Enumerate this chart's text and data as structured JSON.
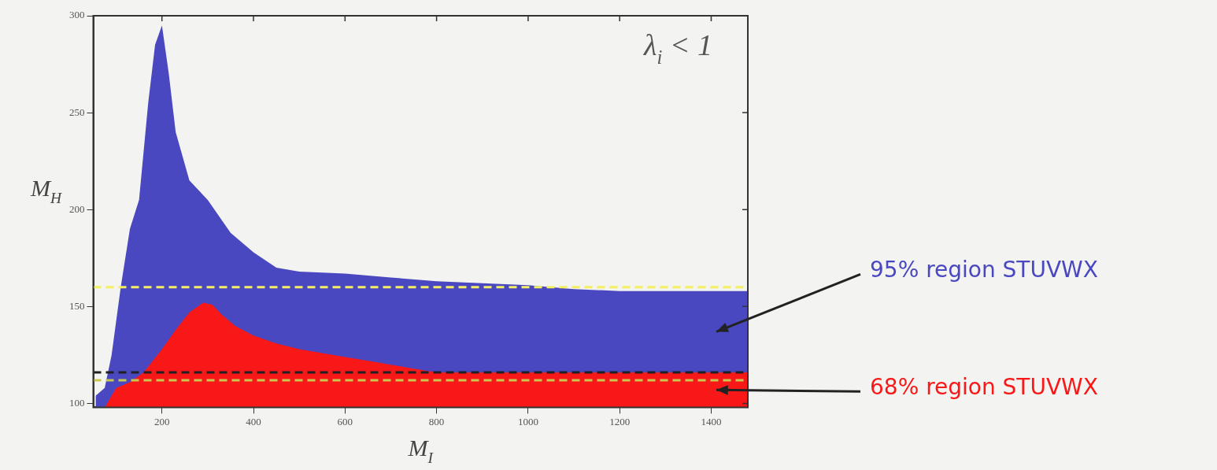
{
  "chart_data": {
    "type": "area",
    "xlabel": "M$_{I}$",
    "ylabel": "M$_{H}$",
    "xlim": [
      50,
      1480
    ],
    "ylim": [
      98,
      300
    ],
    "xticks": [
      200,
      400,
      600,
      800,
      1000,
      1200,
      1400
    ],
    "yticks": [
      100,
      150,
      200,
      250,
      300
    ],
    "grid": false,
    "legend": false,
    "marker": "none",
    "series": [
      {
        "name": "95% region STUVWX",
        "color": "#4a48c0",
        "x": [
          55,
          75,
          90,
          110,
          130,
          150,
          170,
          185,
          200,
          215,
          230,
          260,
          300,
          350,
          400,
          450,
          500,
          600,
          700,
          800,
          900,
          1000,
          1100,
          1200,
          1300,
          1400,
          1480
        ],
        "values": [
          104,
          108,
          125,
          160,
          190,
          205,
          255,
          285,
          295,
          270,
          240,
          215,
          205,
          188,
          178,
          170,
          168,
          167,
          165,
          163,
          162,
          161,
          159,
          158,
          158,
          158,
          158
        ]
      },
      {
        "name": "68% region STUVWX",
        "color": "#f81818",
        "x": [
          75,
          85,
          100,
          130,
          160,
          200,
          230,
          260,
          290,
          310,
          330,
          360,
          400,
          450,
          500,
          550,
          600,
          650,
          700,
          750,
          800,
          900,
          1000,
          1200,
          1400,
          1480
        ],
        "values": [
          98,
          102,
          108,
          111,
          116,
          128,
          138,
          147,
          152,
          151,
          146,
          140,
          135,
          131,
          128,
          126,
          124,
          122,
          120,
          118,
          116,
          116,
          116,
          116,
          116,
          116
        ]
      }
    ],
    "ref_lines": [
      {
        "axis": "y",
        "value": 160,
        "color": "#f2f060",
        "line_style": "dashed"
      },
      {
        "axis": "y",
        "value": 116,
        "color": "#202020",
        "line_style": "dashed"
      },
      {
        "axis": "y",
        "value": 112,
        "color": "#c8c850",
        "line_style": "dashed"
      }
    ],
    "annotations": [
      "λ$_{i}$ < 1"
    ]
  }
}
